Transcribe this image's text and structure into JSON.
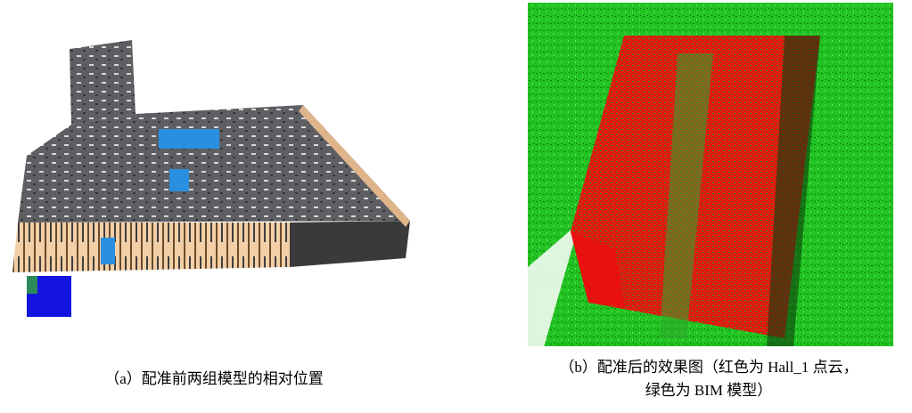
{
  "figure": {
    "panels": [
      {
        "caption": "（a）配准前两组模型的相对位置"
      },
      {
        "caption_lines": [
          "（b）配准后的效果图（红色为 Hall_1 点云，",
          "绿色为 BIM 模型）"
        ]
      }
    ]
  }
}
